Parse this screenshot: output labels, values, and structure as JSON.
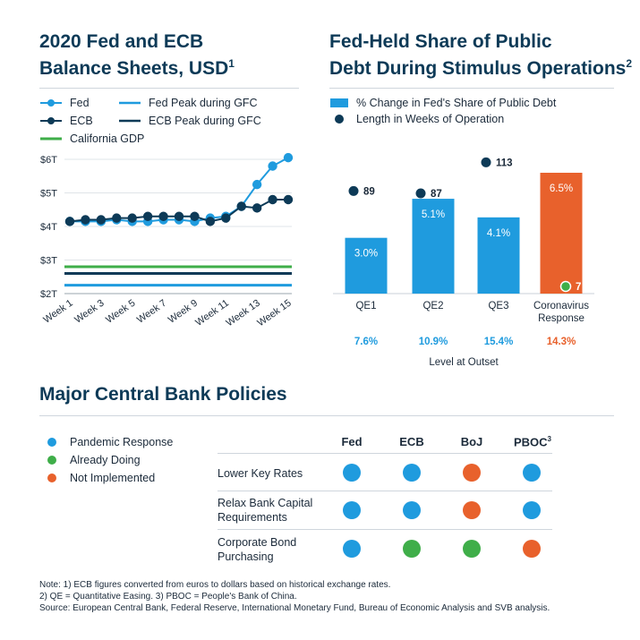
{
  "left_panel": {
    "title_line1": "2020 Fed and ECB",
    "title_line2": "Balance Sheets, USD",
    "title_note": "1",
    "legend": [
      {
        "label": "Fed",
        "color": "#1f9bde",
        "style": "line-dot"
      },
      {
        "label": "Fed Peak during GFC",
        "color": "#1f9bde",
        "style": "line"
      },
      {
        "label": "ECB",
        "color": "#0d3a57",
        "style": "line-dot"
      },
      {
        "label": "ECB Peak during GFC",
        "color": "#0d3a57",
        "style": "line"
      },
      {
        "label": "California GDP",
        "color": "#3fae49",
        "style": "line"
      }
    ]
  },
  "right_panel": {
    "title_line1": "Fed-Held Share of Public",
    "title_line2": "Debt During Stimulus Operations",
    "title_note": "2",
    "legend": [
      {
        "label": "% Change in Fed's Share of Public Debt",
        "color": "#1f9bde",
        "style": "square"
      },
      {
        "label": "Length in Weeks of Operation",
        "color": "#0d3a57",
        "style": "dot"
      }
    ],
    "level_at_outset_label": "Level at Outset"
  },
  "chart_data": [
    {
      "type": "line",
      "title": "2020 Fed and ECB Balance Sheets, USD",
      "x": [
        "Week 1",
        "Week 2",
        "Week 3",
        "Week 4",
        "Week 5",
        "Week 6",
        "Week 7",
        "Week 8",
        "Week 9",
        "Week 10",
        "Week 11",
        "Week 12",
        "Week 13",
        "Week 14",
        "Week 15"
      ],
      "tick_labels": [
        "Week 1",
        "Week 3",
        "Week 5",
        "Week 7",
        "Week 9",
        "Week 11",
        "Week 13",
        "Week 15"
      ],
      "y_ticks": [
        "$2T",
        "$3T",
        "$4T",
        "$5T",
        "$6T"
      ],
      "ylim": [
        2,
        6
      ],
      "series": [
        {
          "name": "Fed",
          "color": "#1f9bde",
          "values": [
            4.15,
            4.15,
            4.15,
            4.2,
            4.15,
            4.15,
            4.2,
            4.2,
            4.15,
            4.25,
            4.3,
            4.6,
            5.25,
            5.8,
            6.05
          ]
        },
        {
          "name": "ECB",
          "color": "#0d3a57",
          "values": [
            4.15,
            4.2,
            4.2,
            4.25,
            4.25,
            4.3,
            4.3,
            4.3,
            4.3,
            4.15,
            4.25,
            4.6,
            4.55,
            4.8,
            4.8
          ]
        }
      ],
      "reference_lines": [
        {
          "name": "California GDP",
          "value": 2.8,
          "color": "#3fae49"
        },
        {
          "name": "ECB Peak during GFC",
          "value": 2.6,
          "color": "#0d3a57"
        },
        {
          "name": "Fed Peak during GFC",
          "value": 2.25,
          "color": "#1f9bde"
        }
      ]
    },
    {
      "type": "bar",
      "title": "Fed-Held Share of Public Debt During Stimulus Operations",
      "categories": [
        "QE1",
        "QE2",
        "QE3",
        "Coronavirus Response"
      ],
      "category_lines": [
        [
          "QE1"
        ],
        [
          "QE2"
        ],
        [
          "QE3"
        ],
        [
          "Coronavirus",
          "Response"
        ]
      ],
      "ylim": [
        0,
        6.5
      ],
      "series": [
        {
          "name": "% Change in Fed's Share of Public Debt",
          "values": [
            3.0,
            5.1,
            4.1,
            6.5
          ],
          "labels": [
            "3.0%",
            "5.1%",
            "4.1%",
            "6.5%"
          ],
          "colors": [
            "#1f9bde",
            "#1f9bde",
            "#1f9bde",
            "#e8612c"
          ]
        },
        {
          "name": "Length in Weeks of Operation",
          "values": [
            89,
            87,
            113,
            7
          ],
          "labels": [
            "89",
            "87",
            "113",
            "7"
          ]
        }
      ],
      "level_at_outset": [
        "7.6%",
        "10.9%",
        "15.4%",
        "14.3%"
      ],
      "level_colors": [
        "#1f9bde",
        "#1f9bde",
        "#1f9bde",
        "#e8612c"
      ]
    }
  ],
  "policies": {
    "title": "Major Central Bank Policies",
    "legend": [
      {
        "label": "Pandemic Response",
        "color": "#1f9bde"
      },
      {
        "label": "Already Doing",
        "color": "#3fae49"
      },
      {
        "label": "Not Implemented",
        "color": "#e8612c"
      }
    ],
    "columns": [
      "Fed",
      "ECB",
      "BoJ",
      "PBOC"
    ],
    "pboc_note": "3",
    "rows": [
      {
        "label_lines": [
          "Lower Key Rates"
        ],
        "statuses": [
          "pandemic",
          "pandemic",
          "not",
          "pandemic"
        ]
      },
      {
        "label_lines": [
          "Relax Bank Capital",
          "Requirements"
        ],
        "statuses": [
          "pandemic",
          "pandemic",
          "not",
          "pandemic"
        ]
      },
      {
        "label_lines": [
          "Corporate Bond",
          "Purchasing"
        ],
        "statuses": [
          "pandemic",
          "already",
          "already",
          "not"
        ]
      }
    ],
    "status_colors": {
      "pandemic": "#1f9bde",
      "already": "#3fae49",
      "not": "#e8612c"
    }
  },
  "notes": [
    "Note: 1) ECB figures converted from euros to dollars based on historical exchange rates.",
    "2) QE = Quantitative Easing. 3) PBOC = People's Bank of China.",
    "Source: European Central Bank, Federal Reserve, International Monetary Fund, Bureau of Economic Analysis and SVB analysis."
  ]
}
